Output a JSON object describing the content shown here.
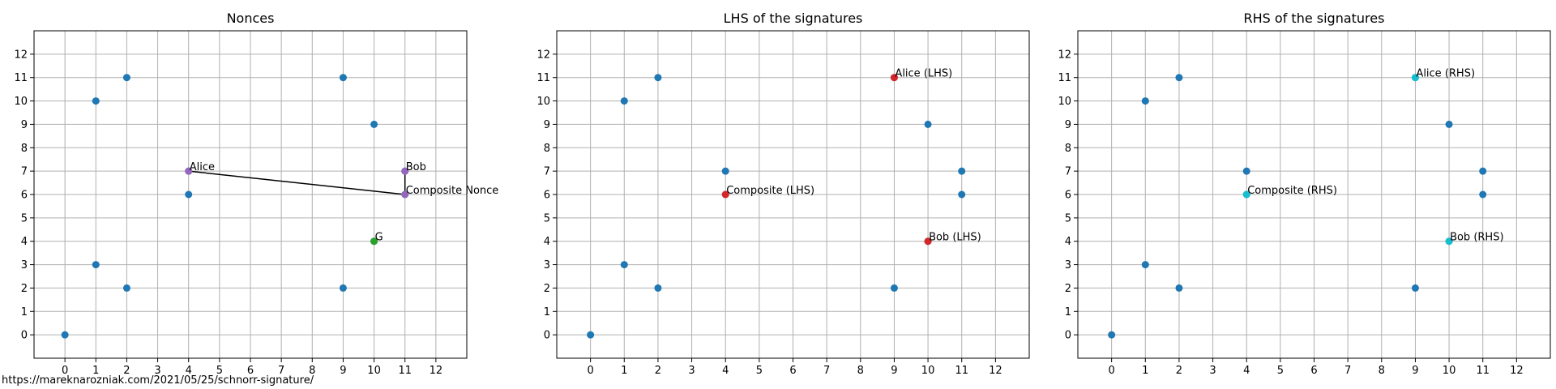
{
  "footer_text": "https://mareknarozniak.com/2021/05/25/schnorr-signature/",
  "colors": {
    "point": "#1f77b4",
    "nonce": "#9467bd",
    "generator": "#2ca02c",
    "lhs": "#d62728",
    "rhs": "#17becf",
    "grid": "#b0b0b0",
    "axis": "#000000",
    "line": "#000000"
  },
  "chart_data": [
    {
      "type": "scatter",
      "title": "Nonces",
      "xlim": [
        -1,
        13
      ],
      "ylim": [
        -1,
        13
      ],
      "xticks": [
        "0",
        "1",
        "2",
        "3",
        "4",
        "5",
        "6",
        "7",
        "8",
        "9",
        "10",
        "11",
        "12"
      ],
      "yticks": [
        "0",
        "1",
        "2",
        "3",
        "4",
        "5",
        "6",
        "7",
        "8",
        "9",
        "10",
        "11",
        "12"
      ],
      "grid": true,
      "points": [
        [
          0,
          0
        ],
        [
          1,
          3
        ],
        [
          1,
          10
        ],
        [
          2,
          2
        ],
        [
          2,
          11
        ],
        [
          4,
          6
        ],
        [
          4,
          7
        ],
        [
          9,
          2
        ],
        [
          9,
          11
        ],
        [
          10,
          4
        ],
        [
          10,
          9
        ],
        [
          11,
          6
        ],
        [
          11,
          7
        ]
      ],
      "highlights": [
        {
          "label": "Alice",
          "x": 4,
          "y": 7,
          "color": "#9467bd"
        },
        {
          "label": "Bob",
          "x": 11,
          "y": 7,
          "color": "#9467bd"
        },
        {
          "label": "Composite Nonce",
          "x": 11,
          "y": 6,
          "color": "#9467bd"
        },
        {
          "label": "G",
          "x": 10,
          "y": 4,
          "color": "#2ca02c"
        }
      ],
      "lines": [
        [
          [
            4,
            7
          ],
          [
            11,
            6
          ]
        ],
        [
          [
            11,
            7
          ],
          [
            11,
            6
          ]
        ]
      ]
    },
    {
      "type": "scatter",
      "title": "LHS of the signatures",
      "xlim": [
        -1,
        13
      ],
      "ylim": [
        -1,
        13
      ],
      "xticks": [
        "0",
        "1",
        "2",
        "3",
        "4",
        "5",
        "6",
        "7",
        "8",
        "9",
        "10",
        "11",
        "12"
      ],
      "yticks": [
        "0",
        "1",
        "2",
        "3",
        "4",
        "5",
        "6",
        "7",
        "8",
        "9",
        "10",
        "11",
        "12"
      ],
      "grid": true,
      "points": [
        [
          0,
          0
        ],
        [
          1,
          3
        ],
        [
          1,
          10
        ],
        [
          2,
          2
        ],
        [
          2,
          11
        ],
        [
          4,
          6
        ],
        [
          4,
          7
        ],
        [
          9,
          2
        ],
        [
          9,
          11
        ],
        [
          10,
          4
        ],
        [
          10,
          9
        ],
        [
          11,
          6
        ],
        [
          11,
          7
        ]
      ],
      "highlights": [
        {
          "label": "Alice (LHS)",
          "x": 9,
          "y": 11,
          "color": "#d62728"
        },
        {
          "label": "Composite (LHS)",
          "x": 4,
          "y": 6,
          "color": "#d62728"
        },
        {
          "label": "Bob (LHS)",
          "x": 10,
          "y": 4,
          "color": "#d62728"
        }
      ],
      "lines": []
    },
    {
      "type": "scatter",
      "title": "RHS of the signatures",
      "xlim": [
        -1,
        13
      ],
      "ylim": [
        -1,
        13
      ],
      "xticks": [
        "0",
        "1",
        "2",
        "3",
        "4",
        "5",
        "6",
        "7",
        "8",
        "9",
        "10",
        "11",
        "12"
      ],
      "yticks": [
        "0",
        "1",
        "2",
        "3",
        "4",
        "5",
        "6",
        "7",
        "8",
        "9",
        "10",
        "11",
        "12"
      ],
      "grid": true,
      "points": [
        [
          0,
          0
        ],
        [
          1,
          3
        ],
        [
          1,
          10
        ],
        [
          2,
          2
        ],
        [
          2,
          11
        ],
        [
          4,
          6
        ],
        [
          4,
          7
        ],
        [
          9,
          2
        ],
        [
          9,
          11
        ],
        [
          10,
          4
        ],
        [
          10,
          9
        ],
        [
          11,
          6
        ],
        [
          11,
          7
        ]
      ],
      "highlights": [
        {
          "label": "Alice (RHS)",
          "x": 9,
          "y": 11,
          "color": "#17becf"
        },
        {
          "label": "Composite (RHS)",
          "x": 4,
          "y": 6,
          "color": "#17becf"
        },
        {
          "label": "Bob (RHS)",
          "x": 10,
          "y": 4,
          "color": "#17becf"
        }
      ],
      "lines": []
    }
  ]
}
